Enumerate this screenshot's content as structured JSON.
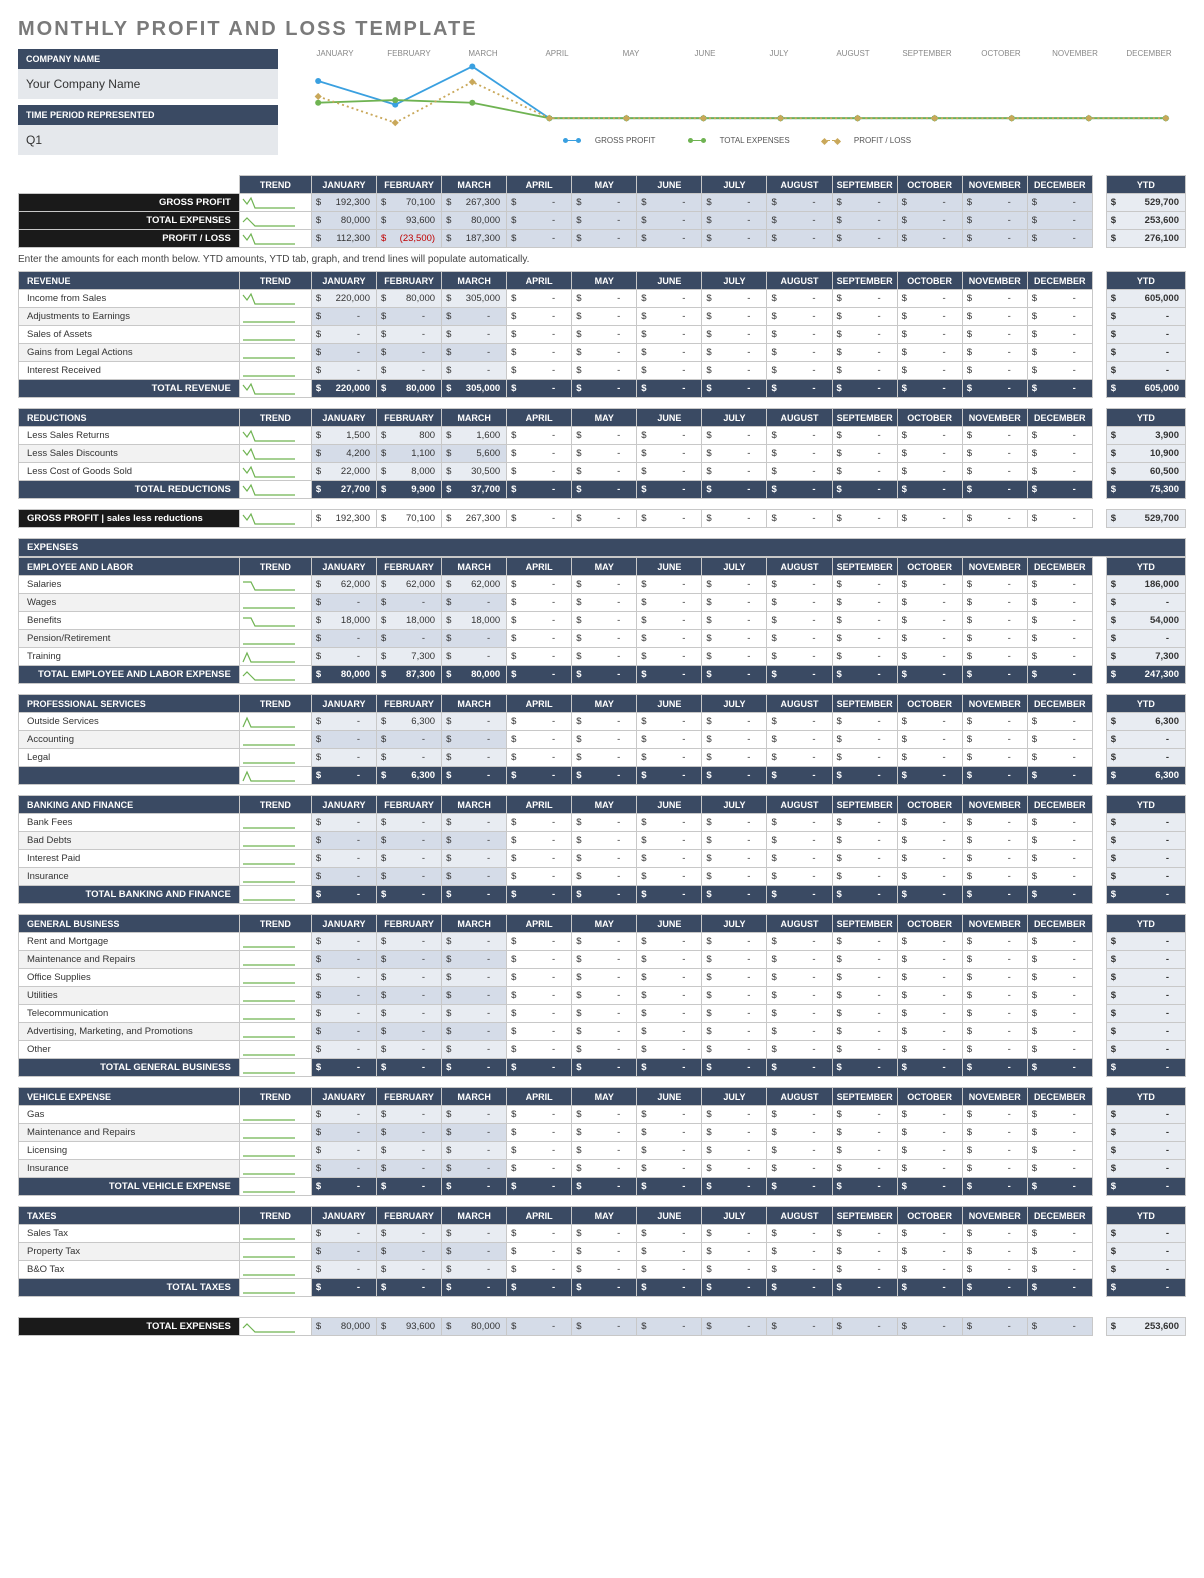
{
  "title": "MONTHLY PROFIT AND LOSS TEMPLATE",
  "company_label": "COMPANY NAME",
  "company_value": "Your Company Name",
  "period_label": "TIME PERIOD REPRESENTED",
  "period_value": "Q1",
  "note": "Enter the amounts for each month below. YTD amounts, YTD tab, graph, and trend lines will populate automatically.",
  "colors": {
    "header_dark": "#3a4a63",
    "black": "#1a1a1a",
    "money_bg": "#d5dce8",
    "ytd_bg": "#e8ecf2",
    "border": "#c8c8c8",
    "blue": "#3aa0e0",
    "green": "#6fb352",
    "gold": "#c9a85a",
    "neg": "#c00000"
  },
  "months": [
    "JANUARY",
    "FEBRUARY",
    "MARCH",
    "APRIL",
    "MAY",
    "JUNE",
    "JULY",
    "AUGUST",
    "SEPTEMBER",
    "OCTOBER",
    "NOVEMBER",
    "DECEMBER"
  ],
  "ytd_label": "YTD",
  "trend_label": "TREND",
  "chart": {
    "type": "line",
    "xlabels": [
      "JANUARY",
      "FEBRUARY",
      "MARCH",
      "APRIL",
      "MAY",
      "JUNE",
      "JULY",
      "AUGUST",
      "SEPTEMBER",
      "OCTOBER",
      "NOVEMBER",
      "DECEMBER"
    ],
    "series": [
      {
        "name": "GROSS PROFIT",
        "color": "#3aa0e0",
        "marker": "circle",
        "dash": "none",
        "values": [
          192300,
          70100,
          267300,
          0,
          0,
          0,
          0,
          0,
          0,
          0,
          0,
          0
        ]
      },
      {
        "name": "TOTAL EXPENSES",
        "color": "#6fb352",
        "marker": "circle",
        "dash": "none",
        "values": [
          80000,
          93600,
          80000,
          0,
          0,
          0,
          0,
          0,
          0,
          0,
          0,
          0
        ]
      },
      {
        "name": "PROFIT / LOSS",
        "color": "#c9a85a",
        "marker": "diamond",
        "dash": "dot",
        "values": [
          112300,
          -23500,
          187300,
          0,
          0,
          0,
          0,
          0,
          0,
          0,
          0,
          0
        ]
      }
    ],
    "ylim": [
      -30000,
      280000
    ]
  },
  "legend": [
    "GROSS PROFIT",
    "TOTAL EXPENSES",
    "PROFIT / LOSS"
  ],
  "summary": {
    "rows": [
      {
        "label": "GROSS PROFIT",
        "values": [
          "192,300",
          "70,100",
          "267,300",
          "-",
          "-",
          "-",
          "-",
          "-",
          "-",
          "-",
          "-",
          "-"
        ],
        "ytd": "529,700",
        "spark": "down-up"
      },
      {
        "label": "TOTAL EXPENSES",
        "values": [
          "80,000",
          "93,600",
          "80,000",
          "-",
          "-",
          "-",
          "-",
          "-",
          "-",
          "-",
          "-",
          "-"
        ],
        "ytd": "253,600",
        "spark": "up-down"
      },
      {
        "label": "PROFIT / LOSS",
        "values": [
          "112,300",
          "(23,500)",
          "187,300",
          "-",
          "-",
          "-",
          "-",
          "-",
          "-",
          "-",
          "-",
          "-"
        ],
        "ytd": "276,100",
        "neg_index": 1,
        "spark": "down-up"
      }
    ]
  },
  "sections": [
    {
      "title": "REVENUE",
      "rows": [
        {
          "label": "Income from Sales",
          "values": [
            "220,000",
            "80,000",
            "305,000",
            "",
            "",
            "",
            "",
            "",
            "",
            "",
            "",
            ""
          ],
          "ytd": "605,000",
          "spark": "down-up"
        },
        {
          "label": "Adjustments to Earnings",
          "values": [
            "-",
            "-",
            "-",
            "",
            "",
            "",
            "",
            "",
            "",
            "",
            "",
            ""
          ],
          "ytd": "-",
          "spark": "flat"
        },
        {
          "label": "Sales of Assets",
          "values": [
            "-",
            "-",
            "-",
            "",
            "",
            "",
            "",
            "",
            "",
            "",
            "",
            ""
          ],
          "ytd": "-",
          "spark": "flat"
        },
        {
          "label": "Gains from Legal Actions",
          "values": [
            "-",
            "-",
            "-",
            "",
            "",
            "",
            "",
            "",
            "",
            "",
            "",
            ""
          ],
          "ytd": "-",
          "spark": "flat"
        },
        {
          "label": "Interest Received",
          "values": [
            "-",
            "-",
            "-",
            "",
            "",
            "",
            "",
            "",
            "",
            "",
            "",
            ""
          ],
          "ytd": "-",
          "spark": "flat"
        }
      ],
      "total": {
        "label": "TOTAL REVENUE",
        "values": [
          "220,000",
          "80,000",
          "305,000",
          "-",
          "-",
          "-",
          "-",
          "-",
          "-",
          "-",
          "-",
          "-"
        ],
        "ytd": "605,000",
        "spark": "down-up"
      }
    },
    {
      "title": "REDUCTIONS",
      "rows": [
        {
          "label": "Less Sales Returns",
          "values": [
            "1,500",
            "800",
            "1,600",
            "",
            "",
            "",
            "",
            "",
            "",
            "",
            "",
            ""
          ],
          "ytd": "3,900",
          "spark": "down-up"
        },
        {
          "label": "Less Sales Discounts",
          "values": [
            "4,200",
            "1,100",
            "5,600",
            "",
            "",
            "",
            "",
            "",
            "",
            "",
            "",
            ""
          ],
          "ytd": "10,900",
          "spark": "down-up"
        },
        {
          "label": "Less Cost of Goods Sold",
          "values": [
            "22,000",
            "8,000",
            "30,500",
            "",
            "",
            "",
            "",
            "",
            "",
            "",
            "",
            ""
          ],
          "ytd": "60,500",
          "spark": "down-up"
        }
      ],
      "total": {
        "label": "TOTAL REDUCTIONS",
        "values": [
          "27,700",
          "9,900",
          "37,700",
          "-",
          "-",
          "-",
          "-",
          "-",
          "-",
          "-",
          "-",
          "-"
        ],
        "ytd": "75,300",
        "spark": "down-up"
      }
    }
  ],
  "gross_profit_row": {
    "label": "GROSS PROFIT   |   sales less reductions",
    "values": [
      "192,300",
      "70,100",
      "267,300",
      "-",
      "-",
      "-",
      "-",
      "-",
      "-",
      "-",
      "-",
      "-"
    ],
    "ytd": "529,700",
    "spark": "down-up"
  },
  "expenses_label": "EXPENSES",
  "expense_sections": [
    {
      "title": "EMPLOYEE AND LABOR",
      "rows": [
        {
          "label": "Salaries",
          "values": [
            "62,000",
            "62,000",
            "62,000",
            "",
            "",
            "",
            "",
            "",
            "",
            "",
            "",
            ""
          ],
          "ytd": "186,000",
          "spark": "flat-3"
        },
        {
          "label": "Wages",
          "values": [
            "-",
            "-",
            "-",
            "",
            "",
            "",
            "",
            "",
            "",
            "",
            "",
            ""
          ],
          "ytd": "-",
          "spark": "flat"
        },
        {
          "label": "Benefits",
          "values": [
            "18,000",
            "18,000",
            "18,000",
            "",
            "",
            "",
            "",
            "",
            "",
            "",
            "",
            ""
          ],
          "ytd": "54,000",
          "spark": "flat-3"
        },
        {
          "label": "Pension/Retirement",
          "values": [
            "-",
            "-",
            "-",
            "",
            "",
            "",
            "",
            "",
            "",
            "",
            "",
            ""
          ],
          "ytd": "-",
          "spark": "flat"
        },
        {
          "label": "Training",
          "values": [
            "-",
            "7,300",
            "-",
            "",
            "",
            "",
            "",
            "",
            "",
            "",
            "",
            ""
          ],
          "ytd": "7,300",
          "spark": "bump"
        }
      ],
      "total": {
        "label": "TOTAL EMPLOYEE AND LABOR EXPENSE",
        "values": [
          "80,000",
          "87,300",
          "80,000",
          "-",
          "-",
          "-",
          "-",
          "-",
          "-",
          "-",
          "-",
          "-"
        ],
        "ytd": "247,300",
        "spark": "up-down"
      }
    },
    {
      "title": "PROFESSIONAL SERVICES",
      "rows": [
        {
          "label": "Outside Services",
          "values": [
            "-",
            "6,300",
            "-",
            "",
            "",
            "",
            "",
            "",
            "",
            "",
            "",
            ""
          ],
          "ytd": "6,300",
          "spark": "bump"
        },
        {
          "label": "Accounting",
          "values": [
            "-",
            "-",
            "-",
            "",
            "",
            "",
            "",
            "",
            "",
            "",
            "",
            ""
          ],
          "ytd": "-",
          "spark": "flat"
        },
        {
          "label": "Legal",
          "values": [
            "-",
            "-",
            "-",
            "",
            "",
            "",
            "",
            "",
            "",
            "",
            "",
            ""
          ],
          "ytd": "-",
          "spark": "flat"
        }
      ],
      "total": {
        "label": "",
        "values": [
          "-",
          "6,300",
          "-",
          "-",
          "-",
          "-",
          "-",
          "-",
          "-",
          "-",
          "-",
          "-"
        ],
        "ytd": "6,300",
        "spark": "bump"
      }
    },
    {
      "title": "BANKING AND FINANCE",
      "rows": [
        {
          "label": "Bank Fees",
          "values": [
            "-",
            "-",
            "-",
            "",
            "",
            "",
            "",
            "",
            "",
            "",
            "",
            ""
          ],
          "ytd": "-",
          "spark": "flat"
        },
        {
          "label": "Bad Debts",
          "values": [
            "-",
            "-",
            "-",
            "",
            "",
            "",
            "",
            "",
            "",
            "",
            "",
            ""
          ],
          "ytd": "-",
          "spark": "flat"
        },
        {
          "label": "Interest Paid",
          "values": [
            "-",
            "-",
            "-",
            "",
            "",
            "",
            "",
            "",
            "",
            "",
            "",
            ""
          ],
          "ytd": "-",
          "spark": "flat"
        },
        {
          "label": "Insurance",
          "values": [
            "-",
            "-",
            "-",
            "",
            "",
            "",
            "",
            "",
            "",
            "",
            "",
            ""
          ],
          "ytd": "-",
          "spark": "flat"
        }
      ],
      "total": {
        "label": "TOTAL BANKING AND FINANCE",
        "values": [
          "-",
          "-",
          "-",
          "-",
          "-",
          "-",
          "-",
          "-",
          "-",
          "-",
          "-",
          "-"
        ],
        "ytd": "-",
        "spark": "flat"
      }
    },
    {
      "title": "GENERAL BUSINESS",
      "rows": [
        {
          "label": "Rent and Mortgage",
          "values": [
            "-",
            "-",
            "-",
            "",
            "",
            "",
            "",
            "",
            "",
            "",
            "",
            ""
          ],
          "ytd": "-",
          "spark": "flat"
        },
        {
          "label": "Maintenance and Repairs",
          "values": [
            "-",
            "-",
            "-",
            "",
            "",
            "",
            "",
            "",
            "",
            "",
            "",
            ""
          ],
          "ytd": "-",
          "spark": "flat"
        },
        {
          "label": "Office Supplies",
          "values": [
            "-",
            "-",
            "-",
            "",
            "",
            "",
            "",
            "",
            "",
            "",
            "",
            ""
          ],
          "ytd": "-",
          "spark": "flat"
        },
        {
          "label": "Utilities",
          "values": [
            "-",
            "-",
            "-",
            "",
            "",
            "",
            "",
            "",
            "",
            "",
            "",
            ""
          ],
          "ytd": "-",
          "spark": "flat"
        },
        {
          "label": "Telecommunication",
          "values": [
            "-",
            "-",
            "-",
            "",
            "",
            "",
            "",
            "",
            "",
            "",
            "",
            ""
          ],
          "ytd": "-",
          "spark": "flat"
        },
        {
          "label": "Advertising, Marketing, and Promotions",
          "values": [
            "-",
            "-",
            "-",
            "",
            "",
            "",
            "",
            "",
            "",
            "",
            "",
            ""
          ],
          "ytd": "-",
          "spark": "flat"
        },
        {
          "label": "Other",
          "values": [
            "-",
            "-",
            "-",
            "",
            "",
            "",
            "",
            "",
            "",
            "",
            "",
            ""
          ],
          "ytd": "-",
          "spark": "flat"
        }
      ],
      "total": {
        "label": "TOTAL GENERAL BUSINESS",
        "values": [
          "-",
          "-",
          "-",
          "-",
          "-",
          "-",
          "-",
          "-",
          "-",
          "-",
          "-",
          "-"
        ],
        "ytd": "-",
        "spark": "flat"
      }
    },
    {
      "title": "VEHICLE EXPENSE",
      "rows": [
        {
          "label": "Gas",
          "values": [
            "-",
            "-",
            "-",
            "",
            "",
            "",
            "",
            "",
            "",
            "",
            "",
            ""
          ],
          "ytd": "-",
          "spark": "flat"
        },
        {
          "label": "Maintenance and Repairs",
          "values": [
            "-",
            "-",
            "-",
            "",
            "",
            "",
            "",
            "",
            "",
            "",
            "",
            ""
          ],
          "ytd": "-",
          "spark": "flat"
        },
        {
          "label": "Licensing",
          "values": [
            "-",
            "-",
            "-",
            "",
            "",
            "",
            "",
            "",
            "",
            "",
            "",
            ""
          ],
          "ytd": "-",
          "spark": "flat"
        },
        {
          "label": "Insurance",
          "values": [
            "-",
            "-",
            "-",
            "",
            "",
            "",
            "",
            "",
            "",
            "",
            "",
            ""
          ],
          "ytd": "-",
          "spark": "flat"
        }
      ],
      "total": {
        "label": "TOTAL VEHICLE EXPENSE",
        "values": [
          "-",
          "-",
          "-",
          "-",
          "-",
          "-",
          "-",
          "-",
          "-",
          "-",
          "-",
          "-"
        ],
        "ytd": "-",
        "spark": "flat"
      }
    },
    {
      "title": "TAXES",
      "rows": [
        {
          "label": "Sales Tax",
          "values": [
            "-",
            "-",
            "-",
            "",
            "",
            "",
            "",
            "",
            "",
            "",
            "",
            ""
          ],
          "ytd": "-",
          "spark": "flat"
        },
        {
          "label": "Property Tax",
          "values": [
            "-",
            "-",
            "-",
            "",
            "",
            "",
            "",
            "",
            "",
            "",
            "",
            ""
          ],
          "ytd": "-",
          "spark": "flat"
        },
        {
          "label": "B&O Tax",
          "values": [
            "-",
            "-",
            "-",
            "",
            "",
            "",
            "",
            "",
            "",
            "",
            "",
            ""
          ],
          "ytd": "-",
          "spark": "flat"
        }
      ],
      "total": {
        "label": "TOTAL TAXES",
        "values": [
          "-",
          "-",
          "-",
          "-",
          "-",
          "-",
          "-",
          "-",
          "-",
          "-",
          "-",
          "-"
        ],
        "ytd": "-",
        "spark": "flat"
      }
    }
  ],
  "total_expenses_row": {
    "label": "TOTAL EXPENSES",
    "values": [
      "80,000",
      "93,600",
      "80,000",
      "-",
      "-",
      "-",
      "-",
      "-",
      "-",
      "-",
      "-",
      "-"
    ],
    "ytd": "253,600",
    "spark": "up-down"
  }
}
